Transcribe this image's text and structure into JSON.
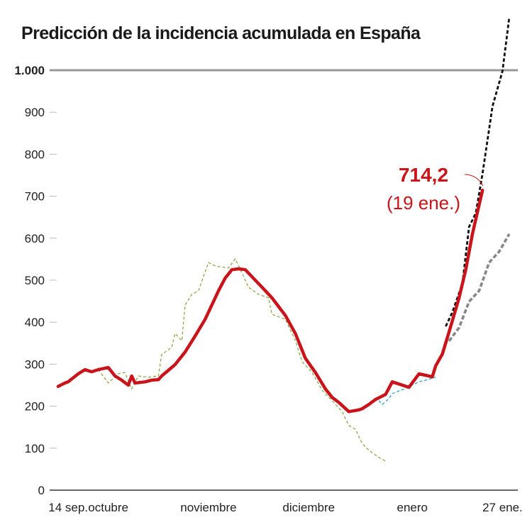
{
  "chart_data": {
    "type": "line",
    "title": "Predicción de la incidencia acumulada en España",
    "xlabel": "",
    "ylabel": "",
    "ylim": [
      0,
      1000
    ],
    "xlim": [
      "2020-09-14",
      "2021-01-27"
    ],
    "grid": false,
    "y_ticks": [
      {
        "value": 0,
        "label": "0"
      },
      {
        "value": 100,
        "label": "100"
      },
      {
        "value": 200,
        "label": "200"
      },
      {
        "value": 300,
        "label": "300"
      },
      {
        "value": 400,
        "label": "400"
      },
      {
        "value": 500,
        "label": "500"
      },
      {
        "value": 600,
        "label": "600"
      },
      {
        "value": 700,
        "label": "700"
      },
      {
        "value": 800,
        "label": "800"
      },
      {
        "value": 900,
        "label": "900"
      },
      {
        "value": 1000,
        "label": "1.000",
        "emphasis": true
      }
    ],
    "x_ticks": [
      {
        "date": "2020-09-17",
        "label": "14 sep."
      },
      {
        "date": "2020-09-29",
        "label": "octubre"
      },
      {
        "date": "2020-10-29",
        "label": "noviembre"
      },
      {
        "date": "2020-11-28",
        "label": "diciembre"
      },
      {
        "date": "2020-12-29",
        "label": "enero"
      },
      {
        "date": "2021-01-25",
        "label": "27 ene."
      }
    ],
    "annotation": {
      "value_label": "714,2",
      "date_label": "(19 ene.)",
      "date": "2021-01-19",
      "value": 714.2
    },
    "series": [
      {
        "style": "solid",
        "color": "#c8141a",
        "points": [
          [
            "2020-09-14",
            247
          ],
          [
            "2020-09-16",
            255
          ],
          [
            "2020-09-17",
            258
          ],
          [
            "2020-09-20",
            277
          ],
          [
            "2020-09-22",
            287
          ],
          [
            "2020-09-24",
            282
          ],
          [
            "2020-09-26",
            287
          ],
          [
            "2020-09-29",
            292
          ],
          [
            "2020-10-01",
            272
          ],
          [
            "2020-10-03",
            262
          ],
          [
            "2020-10-05",
            250
          ],
          [
            "2020-10-06",
            272
          ],
          [
            "2020-10-07",
            255
          ],
          [
            "2020-10-10",
            258
          ],
          [
            "2020-10-12",
            262
          ],
          [
            "2020-10-14",
            263
          ],
          [
            "2020-10-15",
            272
          ],
          [
            "2020-10-19",
            299
          ],
          [
            "2020-10-22",
            329
          ],
          [
            "2020-10-25",
            367
          ],
          [
            "2020-10-28",
            407
          ],
          [
            "2020-10-30",
            441
          ],
          [
            "2020-11-01",
            475
          ],
          [
            "2020-11-03",
            505
          ],
          [
            "2020-11-05",
            525
          ],
          [
            "2020-11-07",
            527
          ],
          [
            "2020-11-09",
            525
          ],
          [
            "2020-11-12",
            500
          ],
          [
            "2020-11-15",
            475
          ],
          [
            "2020-11-17",
            458
          ],
          [
            "2020-11-21",
            416
          ],
          [
            "2020-11-24",
            373
          ],
          [
            "2020-11-27",
            314
          ],
          [
            "2020-11-30",
            280
          ],
          [
            "2020-12-03",
            241
          ],
          [
            "2020-12-05",
            221
          ],
          [
            "2020-12-07",
            209
          ],
          [
            "2020-12-10",
            187
          ],
          [
            "2020-12-13",
            191
          ],
          [
            "2020-12-14",
            194
          ],
          [
            "2020-12-16",
            204
          ],
          [
            "2020-12-18",
            216
          ],
          [
            "2020-12-21",
            228
          ],
          [
            "2020-12-23",
            258
          ],
          [
            "2020-12-28",
            245
          ],
          [
            "2020-12-31",
            277
          ],
          [
            "2021-01-04",
            270
          ],
          [
            "2021-01-05",
            296
          ],
          [
            "2021-01-07",
            324
          ],
          [
            "2021-01-09",
            377
          ],
          [
            "2021-01-12",
            458
          ],
          [
            "2021-01-14",
            525
          ],
          [
            "2021-01-16",
            610
          ],
          [
            "2021-01-19",
            714.2
          ]
        ]
      },
      {
        "style": "dashed-thin",
        "color": "#8aa84a",
        "points": [
          [
            "2020-09-26",
            287
          ],
          [
            "2020-09-29",
            255
          ],
          [
            "2020-10-02",
            277
          ],
          [
            "2020-10-04",
            280
          ],
          [
            "2020-10-06",
            241
          ],
          [
            "2020-10-08",
            272
          ],
          [
            "2020-10-11",
            269
          ],
          [
            "2020-10-14",
            272
          ],
          [
            "2020-10-15",
            323
          ],
          [
            "2020-10-18",
            340
          ],
          [
            "2020-10-19",
            373
          ],
          [
            "2020-10-21",
            356
          ],
          [
            "2020-10-22",
            441
          ],
          [
            "2020-10-24",
            466
          ],
          [
            "2020-10-26",
            475
          ],
          [
            "2020-10-29",
            542
          ],
          [
            "2020-10-31",
            534
          ],
          [
            "2020-11-04",
            529
          ],
          [
            "2020-11-06",
            551
          ],
          [
            "2020-11-08",
            517
          ],
          [
            "2020-11-10",
            483
          ],
          [
            "2020-11-13",
            466
          ],
          [
            "2020-11-16",
            458
          ],
          [
            "2020-11-17",
            419
          ],
          [
            "2020-11-21",
            407
          ],
          [
            "2020-11-24",
            356
          ],
          [
            "2020-11-26",
            306
          ],
          [
            "2020-11-29",
            280
          ],
          [
            "2020-12-02",
            238
          ],
          [
            "2020-12-05",
            213
          ],
          [
            "2020-12-08",
            187
          ],
          [
            "2020-12-10",
            154
          ],
          [
            "2020-12-12",
            145
          ],
          [
            "2020-12-14",
            111
          ],
          [
            "2020-12-16",
            95
          ],
          [
            "2020-12-19",
            78
          ],
          [
            "2020-12-21",
            69
          ]
        ]
      },
      {
        "style": "dashed-thin",
        "color": "#2a9fd0",
        "points": [
          [
            "2020-12-19",
            213
          ],
          [
            "2020-12-20",
            204
          ],
          [
            "2020-12-22",
            218
          ],
          [
            "2020-12-23",
            230
          ],
          [
            "2020-12-27",
            242
          ],
          [
            "2020-12-31",
            258
          ],
          [
            "2021-01-02",
            262
          ],
          [
            "2021-01-05",
            269
          ]
        ]
      },
      {
        "style": "dashed",
        "color": "#111111",
        "points": [
          [
            "2021-01-08",
            390
          ],
          [
            "2021-01-10",
            424
          ],
          [
            "2021-01-13",
            492
          ],
          [
            "2021-01-15",
            627
          ],
          [
            "2021-01-17",
            660
          ],
          [
            "2021-01-19",
            753
          ],
          [
            "2021-01-22",
            914
          ],
          [
            "2021-01-25",
            998
          ],
          [
            "2021-01-27",
            1125
          ]
        ]
      },
      {
        "style": "dashed-thick",
        "color": "#888888",
        "points": [
          [
            "2021-01-09",
            355
          ],
          [
            "2021-01-12",
            387
          ],
          [
            "2021-01-15",
            449
          ],
          [
            "2021-01-18",
            475
          ],
          [
            "2021-01-21",
            542
          ],
          [
            "2021-01-24",
            568
          ],
          [
            "2021-01-27",
            610
          ]
        ]
      }
    ]
  }
}
